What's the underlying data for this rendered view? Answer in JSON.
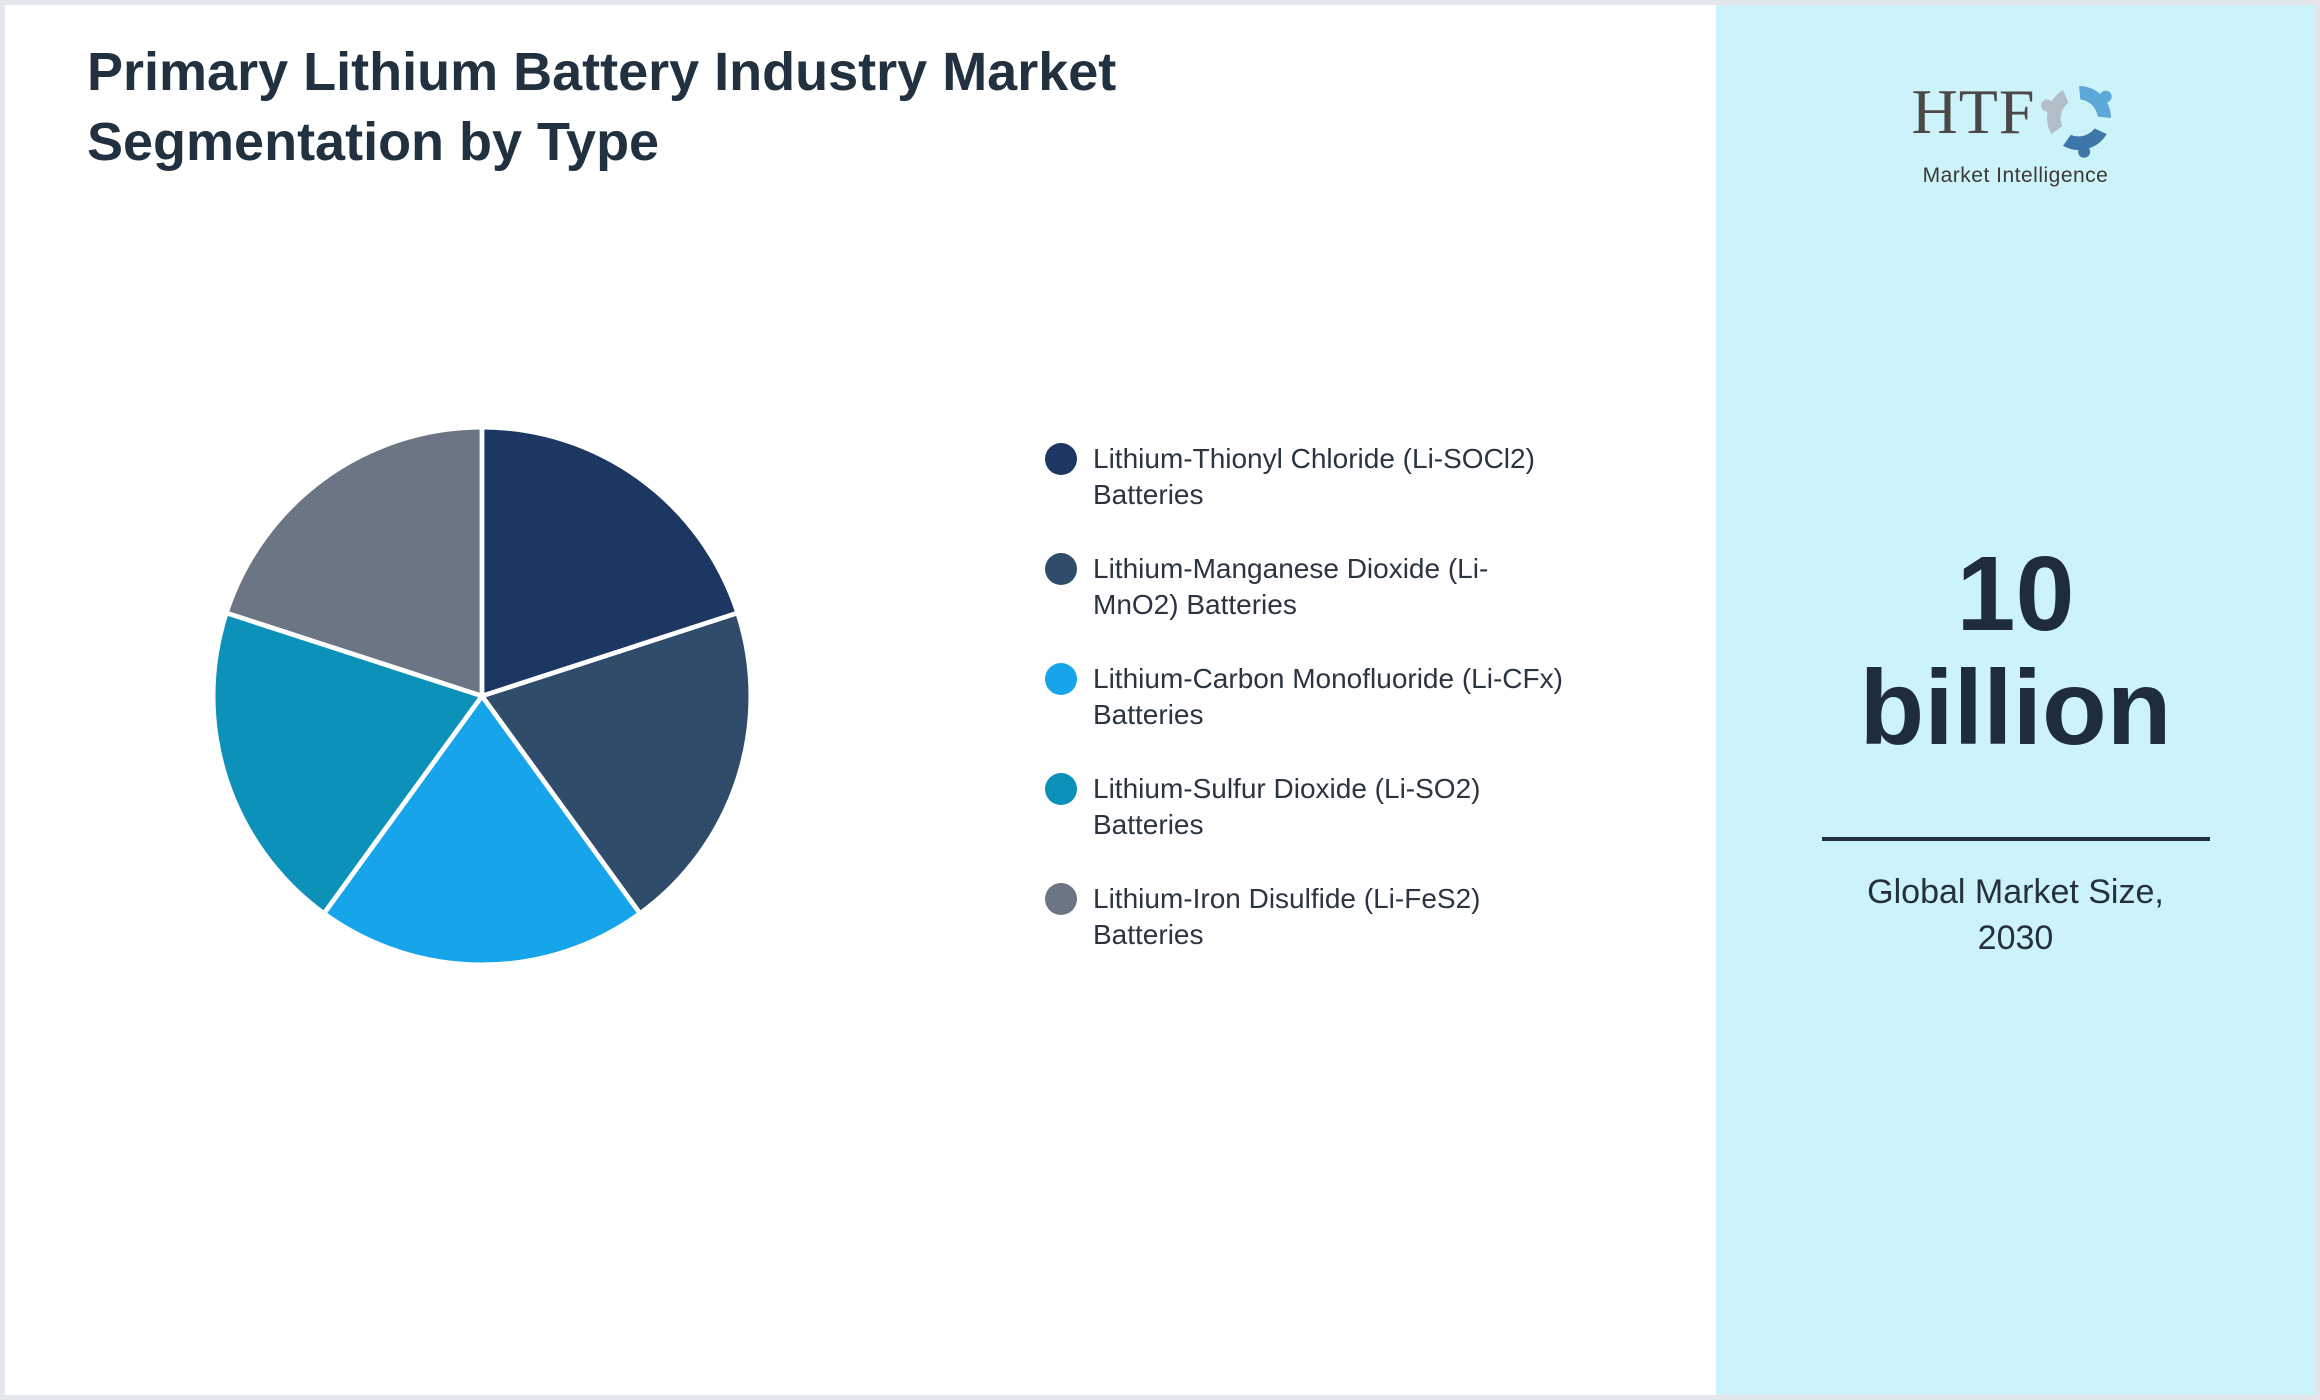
{
  "header": {
    "title": "Primary Lithium Battery Industry Market Segmentation by Type"
  },
  "chart_data": {
    "type": "pie",
    "title": "Primary Lithium Battery Industry Market Segmentation by Type",
    "categories": [
      "Lithium-Thionyl Chloride (Li-SOCl2) Batteries",
      "Lithium-Manganese Dioxide (Li-MnO2) Batteries",
      "Lithium-Carbon Monofluoride (Li-CFx) Batteries",
      "Lithium-Sulfur Dioxide (Li-SO2) Batteries",
      "Lithium-Iron Disulfide (Li-FeS2) Batteries"
    ],
    "values": [
      20,
      20,
      20,
      20,
      20
    ],
    "values_note": "no data labels shown; five visually equal slices (~20% each)",
    "colors": [
      "#1C3761",
      "#2F4C6B",
      "#16A5EA",
      "#0C91B8",
      "#6C7584"
    ],
    "start_angle_deg": 0,
    "direction": "clockwise",
    "legend_position": "right",
    "slice_separator_color": "#FFFFFF",
    "data_labels": false
  },
  "panel": {
    "background": "#CCF2FA",
    "logo": {
      "text": "HTF",
      "subtext": "Market Intelligence",
      "text_color": "#4B4846",
      "swirl_colors": [
        "#5BA8D9",
        "#3E76A9",
        "#B3BDC8"
      ]
    },
    "market_size": "10 billion",
    "caption": "Global Market Size, 2030",
    "divider_color": "#22303E"
  },
  "page_colors": {
    "outer_border": "#E3E6EA",
    "content_background": "#FFFFFF",
    "title_text": "#223140",
    "legend_text": "#2B3542"
  }
}
